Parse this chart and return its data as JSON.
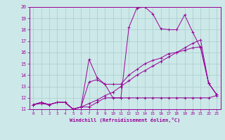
{
  "xlabel": "Windchill (Refroidissement éolien,°C)",
  "xlim": [
    -0.5,
    23.5
  ],
  "ylim": [
    11,
    20
  ],
  "xticks": [
    0,
    1,
    2,
    3,
    4,
    5,
    6,
    7,
    8,
    9,
    10,
    11,
    12,
    13,
    14,
    15,
    16,
    17,
    18,
    19,
    20,
    21,
    22,
    23
  ],
  "yticks": [
    11,
    12,
    13,
    14,
    15,
    16,
    17,
    18,
    19,
    20
  ],
  "bg_color": "#cce8e8",
  "line_color": "#990099",
  "grid_color": "#aacccc",
  "series": [
    [
      11.4,
      11.6,
      11.4,
      11.6,
      11.6,
      11.0,
      11.2,
      15.4,
      13.8,
      13.2,
      12.0,
      12.0,
      18.2,
      19.9,
      20.0,
      19.4,
      18.1,
      18.0,
      18.0,
      19.3,
      17.8,
      16.4,
      13.3,
      12.3
    ],
    [
      11.4,
      11.5,
      11.4,
      11.6,
      11.6,
      11.0,
      11.2,
      11.2,
      11.6,
      12.0,
      12.0,
      12.0,
      12.0,
      12.0,
      12.0,
      12.0,
      12.0,
      12.0,
      12.0,
      12.0,
      12.0,
      12.0,
      12.0,
      12.2
    ],
    [
      11.4,
      11.6,
      11.4,
      11.6,
      11.6,
      11.0,
      11.2,
      13.4,
      13.6,
      13.2,
      13.2,
      13.2,
      14.0,
      14.5,
      15.0,
      15.3,
      15.5,
      15.9,
      16.0,
      16.2,
      16.4,
      16.5,
      13.3,
      12.3
    ],
    [
      11.4,
      11.6,
      11.4,
      11.6,
      11.6,
      11.0,
      11.2,
      11.5,
      11.8,
      12.2,
      12.5,
      13.0,
      13.5,
      14.0,
      14.4,
      14.8,
      15.2,
      15.6,
      16.0,
      16.4,
      16.8,
      17.1,
      13.3,
      12.3
    ]
  ]
}
